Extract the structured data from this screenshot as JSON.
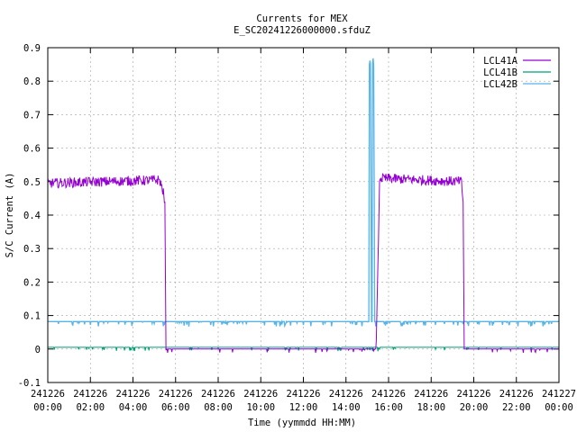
{
  "chart_data": {
    "type": "line",
    "title": "Currents for MEX",
    "subtitle": "E_SC20241226000000.sfduZ",
    "xlabel": "Time (yymmdd HH:MM)",
    "ylabel": "S/C Current (A)",
    "xlim": [
      "241226 00:00",
      "241227 00:00"
    ],
    "ylim": [
      -0.1,
      0.9
    ],
    "grid": true,
    "legend_position": "top-right",
    "y_ticks": [
      "-0.1",
      "0",
      "0.1",
      "0.2",
      "0.3",
      "0.4",
      "0.5",
      "0.6",
      "0.7",
      "0.8",
      "0.9"
    ],
    "x_ticks": [
      {
        "date": "241226",
        "time": "00:00"
      },
      {
        "date": "241226",
        "time": "02:00"
      },
      {
        "date": "241226",
        "time": "04:00"
      },
      {
        "date": "241226",
        "time": "06:00"
      },
      {
        "date": "241226",
        "time": "08:00"
      },
      {
        "date": "241226",
        "time": "10:00"
      },
      {
        "date": "241226",
        "time": "12:00"
      },
      {
        "date": "241226",
        "time": "14:00"
      },
      {
        "date": "241226",
        "time": "16:00"
      },
      {
        "date": "241226",
        "time": "18:00"
      },
      {
        "date": "241226",
        "time": "20:00"
      },
      {
        "date": "241226",
        "time": "22:00"
      },
      {
        "date": "241227",
        "time": "00:00"
      }
    ],
    "series": [
      {
        "name": "LCL41A",
        "color": "#9400d3",
        "x": [
          "00:00",
          "05:15",
          "05:25",
          "05:30",
          "05:33",
          "15:25",
          "15:35",
          "15:40",
          "19:25",
          "19:30",
          "19:33",
          "24:00"
        ],
        "y": [
          0.495,
          0.505,
          0.47,
          0.43,
          0.0,
          0.0,
          0.515,
          0.51,
          0.5,
          0.44,
          0.0,
          0.0
        ]
      },
      {
        "name": "LCL41B",
        "color": "#009e73",
        "x": [
          "00:00",
          "24:00"
        ],
        "y": [
          0.005,
          0.005
        ]
      },
      {
        "name": "LCL42B",
        "color": "#56b4e9",
        "x": [
          "00:00",
          "15:05",
          "15:06",
          "15:10",
          "15:11",
          "15:14",
          "15:15",
          "15:19",
          "15:20",
          "15:24",
          "15:25",
          "24:00"
        ],
        "y": [
          0.082,
          0.082,
          0.855,
          0.855,
          0.082,
          0.082,
          0.855,
          0.855,
          0.082,
          0.082,
          0.082,
          0.082
        ]
      }
    ]
  }
}
